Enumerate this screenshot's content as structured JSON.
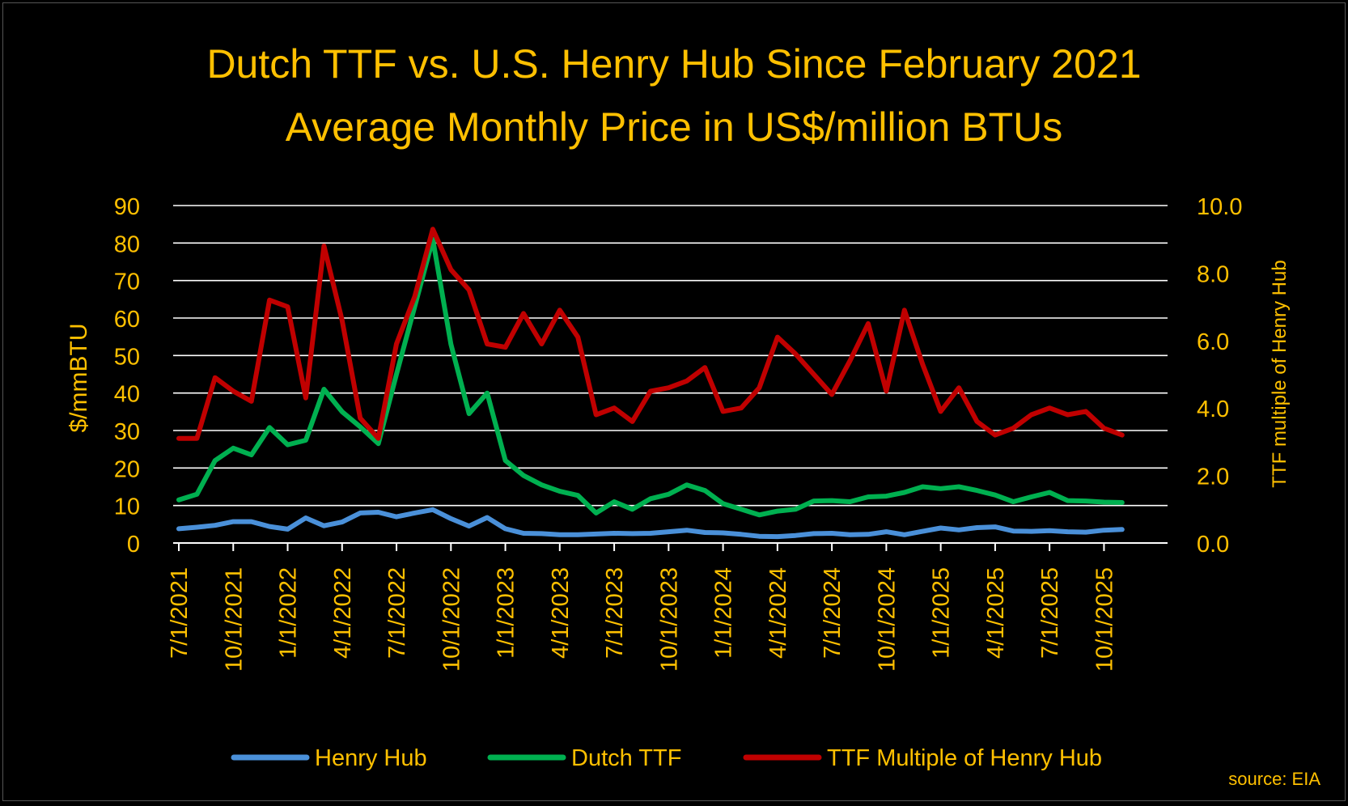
{
  "chart_data": {
    "type": "line",
    "title": "Dutch TTF vs. U.S. Henry Hub Since February 2021",
    "subtitle": "Average Monthly Price in US$/million BTUs",
    "ylabel": "$/mmBTU",
    "y2label": "TTF multiple of Henry Hub",
    "ylim": [
      0,
      90
    ],
    "y2lim": [
      0,
      10
    ],
    "yticks": [
      "0",
      "10",
      "20",
      "30",
      "40",
      "50",
      "60",
      "70",
      "80",
      "90"
    ],
    "y2ticks": [
      "0.0",
      "2.0",
      "4.0",
      "6.0",
      "8.0",
      "10.0"
    ],
    "xtick_labels": [
      "7/1/2021",
      "10/1/2021",
      "1/1/2022",
      "4/1/2022",
      "7/1/2022",
      "10/1/2022",
      "1/1/2023",
      "4/1/2023",
      "7/1/2023",
      "10/1/2023",
      "1/1/2024",
      "4/1/2024",
      "7/1/2024",
      "10/1/2024",
      "1/1/2025",
      "4/1/2025",
      "7/1/2025",
      "10/1/2025"
    ],
    "grid": true,
    "legend_position": "bottom",
    "x": [
      "2021-07",
      "2021-08",
      "2021-09",
      "2021-10",
      "2021-11",
      "2021-12",
      "2022-01",
      "2022-02",
      "2022-03",
      "2022-04",
      "2022-05",
      "2022-06",
      "2022-07",
      "2022-08",
      "2022-09",
      "2022-10",
      "2022-11",
      "2022-12",
      "2023-01",
      "2023-02",
      "2023-03",
      "2023-04",
      "2023-05",
      "2023-06",
      "2023-07",
      "2023-08",
      "2023-09",
      "2023-10",
      "2023-11",
      "2023-12",
      "2024-01",
      "2024-02",
      "2024-03",
      "2024-04",
      "2024-05",
      "2024-06",
      "2024-07",
      "2024-08",
      "2024-09",
      "2024-10",
      "2024-11",
      "2024-12",
      "2025-01",
      "2025-02",
      "2025-03",
      "2025-04",
      "2025-05",
      "2025-06",
      "2025-07",
      "2025-08",
      "2025-09",
      "2025-10",
      "2025-11"
    ],
    "series": [
      {
        "name": "Henry Hub",
        "axis": "left",
        "color": "#4a90d9",
        "values": [
          3.8,
          4.2,
          4.7,
          5.7,
          5.7,
          4.4,
          3.7,
          6.7,
          4.6,
          5.6,
          8.0,
          8.2,
          7.0,
          8.0,
          8.9,
          6.5,
          4.5,
          6.8,
          3.8,
          2.6,
          2.5,
          2.2,
          2.2,
          2.4,
          2.6,
          2.5,
          2.6,
          3.0,
          3.4,
          2.8,
          2.7,
          2.3,
          1.8,
          1.7,
          2.0,
          2.5,
          2.6,
          2.2,
          2.3,
          3.0,
          2.2,
          3.1,
          4.0,
          3.5,
          4.1,
          4.3,
          3.2,
          3.1,
          3.3,
          3.0,
          2.9,
          3.4,
          3.6
        ]
      },
      {
        "name": "Dutch TTF",
        "axis": "left",
        "color": "#00b050",
        "values": [
          11.5,
          13.0,
          22.0,
          25.3,
          23.5,
          30.8,
          26.2,
          27.4,
          41.0,
          35.0,
          31.0,
          26.5,
          45.0,
          63.0,
          81.0,
          53.0,
          34.5,
          40.0,
          22.0,
          18.0,
          15.5,
          13.8,
          12.7,
          8.0,
          11.0,
          9.0,
          11.8,
          13.0,
          15.5,
          14.0,
          10.5,
          9.0,
          7.5,
          8.5,
          9.0,
          11.2,
          11.3,
          11.0,
          12.3,
          12.5,
          13.5,
          15.0,
          14.5,
          15.0,
          14.0,
          12.8,
          11.0,
          12.3,
          13.5,
          11.3,
          11.2,
          10.9,
          10.8
        ]
      },
      {
        "name": "TTF Multiple of Henry Hub",
        "axis": "right",
        "color": "#c00000",
        "values": [
          3.1,
          3.1,
          4.9,
          4.5,
          4.2,
          7.2,
          7.0,
          4.3,
          8.8,
          6.6,
          3.7,
          3.1,
          5.9,
          7.3,
          9.3,
          8.1,
          7.5,
          5.9,
          5.8,
          6.8,
          5.9,
          6.9,
          6.1,
          3.8,
          4.0,
          3.6,
          4.5,
          4.6,
          4.8,
          5.2,
          3.9,
          4.0,
          4.6,
          6.1,
          5.6,
          5.0,
          4.4,
          5.4,
          6.5,
          4.5,
          6.9,
          5.3,
          3.9,
          4.6,
          3.6,
          3.2,
          3.4,
          3.8,
          4.0,
          3.8,
          3.9,
          3.4,
          3.2
        ]
      }
    ],
    "source": "source: EIA"
  }
}
